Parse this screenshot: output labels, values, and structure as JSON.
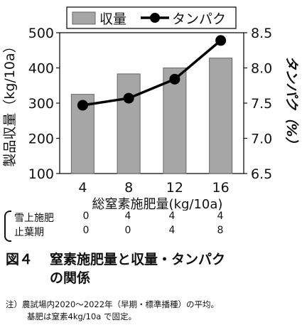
{
  "chart_data": {
    "type": "bar",
    "categories": [
      "4",
      "8",
      "12",
      "16"
    ],
    "series": [
      {
        "name": "収量",
        "kind": "bar",
        "axis": "left",
        "color": "#a6a6a6",
        "values": [
          325,
          383,
          400,
          428
        ]
      },
      {
        "name": "タンパク",
        "kind": "line",
        "axis": "right",
        "color": "#000000",
        "values": [
          7.47,
          7.57,
          7.84,
          8.39
        ]
      }
    ],
    "xlabel": "総窒素施肥量(kg/10a)",
    "ylabel": "製品収量（kg/10a）",
    "y2label": "タンパク（%）",
    "ylim": [
      100,
      500
    ],
    "y2lim": [
      6.5,
      8.5
    ],
    "yticks": [
      "100",
      "200",
      "300",
      "400",
      "500"
    ],
    "y2ticks": [
      "6.5",
      "7.0",
      "7.5",
      "8.0",
      "8.5"
    ],
    "legend_position": "top"
  },
  "application_table": {
    "rows": [
      {
        "label": "雪上施肥",
        "values": [
          "0",
          "4",
          "4",
          "4"
        ]
      },
      {
        "label": "止葉期",
        "values": [
          "0",
          "0",
          "4",
          "8"
        ]
      }
    ]
  },
  "caption": {
    "figure_number": "図４",
    "title_line1": "窒素施肥量と収量・タンパク",
    "title_line2": "の関係"
  },
  "note": {
    "line1": "注）農試場内2020～2022年（早期・標準播種）の平均。",
    "line2": "基肥は窒素4kg/10a で固定。"
  }
}
